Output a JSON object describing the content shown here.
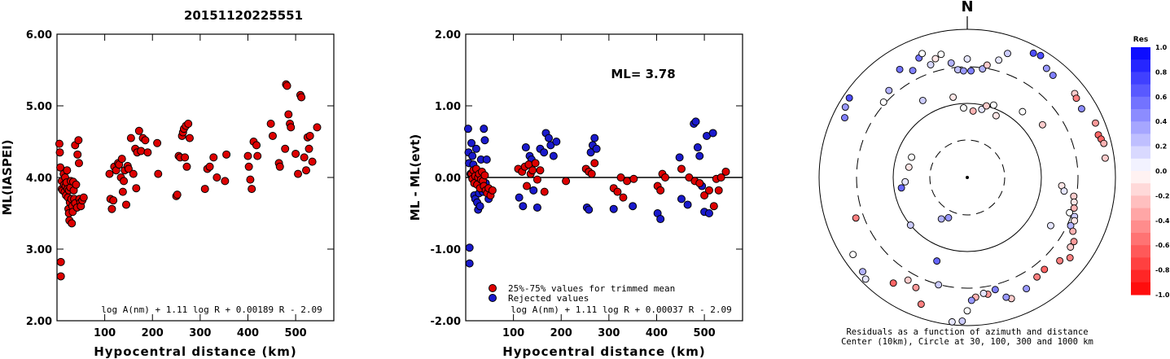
{
  "page_title": "20151120225551",
  "chart_data": [
    {
      "type": "scatter",
      "xlabel": "Hypocentral distance (km)",
      "ylabel": "ML(IASPEI)",
      "xlim": [
        0,
        580
      ],
      "ylim": [
        2.0,
        6.0
      ],
      "x_ticks": [
        "100",
        "200",
        "300",
        "400",
        "500"
      ],
      "y_ticks": [
        "2.00",
        "3.00",
        "4.00",
        "5.00",
        "6.00"
      ],
      "formula": "log A(nm) + 1.11 log R + 0.00189 R - 2.09",
      "color": "#dd0000",
      "points": [
        [
          5,
          4.47
        ],
        [
          6,
          4.35
        ],
        [
          7,
          4.14
        ],
        [
          8,
          2.82
        ],
        [
          8,
          2.62
        ],
        [
          10,
          3.95
        ],
        [
          10,
          3.84
        ],
        [
          12,
          3.82
        ],
        [
          14,
          4.05
        ],
        [
          15,
          3.9
        ],
        [
          16,
          3.8
        ],
        [
          17,
          4.0
        ],
        [
          18,
          3.88
        ],
        [
          19,
          3.75
        ],
        [
          20,
          3.93
        ],
        [
          21,
          4.1
        ],
        [
          22,
          3.84
        ],
        [
          23,
          3.72
        ],
        [
          24,
          3.56
        ],
        [
          25,
          3.5
        ],
        [
          25,
          3.82
        ],
        [
          26,
          3.4
        ],
        [
          27,
          3.65
        ],
        [
          28,
          3.86
        ],
        [
          29,
          3.95
        ],
        [
          30,
          3.7
        ],
        [
          31,
          3.36
        ],
        [
          32,
          3.6
        ],
        [
          33,
          3.52
        ],
        [
          34,
          3.94
        ],
        [
          35,
          3.82
        ],
        [
          36,
          3.7
        ],
        [
          38,
          4.45
        ],
        [
          38,
          3.64
        ],
        [
          40,
          3.9
        ],
        [
          42,
          3.58
        ],
        [
          43,
          4.32
        ],
        [
          45,
          4.52
        ],
        [
          46,
          4.2
        ],
        [
          47,
          3.7
        ],
        [
          49,
          3.65
        ],
        [
          50,
          3.6
        ],
        [
          53,
          3.68
        ],
        [
          56,
          3.72
        ],
        [
          110,
          4.05
        ],
        [
          112,
          3.7
        ],
        [
          115,
          3.56
        ],
        [
          118,
          3.68
        ],
        [
          120,
          4.15
        ],
        [
          124,
          4.1
        ],
        [
          128,
          4.2
        ],
        [
          130,
          4.18
        ],
        [
          134,
          4.0
        ],
        [
          136,
          4.26
        ],
        [
          138,
          3.8
        ],
        [
          140,
          3.95
        ],
        [
          142,
          4.1
        ],
        [
          145,
          3.62
        ],
        [
          148,
          4.16
        ],
        [
          150,
          4.12
        ],
        [
          155,
          4.55
        ],
        [
          160,
          4.05
        ],
        [
          164,
          4.4
        ],
        [
          166,
          3.85
        ],
        [
          168,
          4.35
        ],
        [
          172,
          4.65
        ],
        [
          176,
          4.37
        ],
        [
          180,
          4.55
        ],
        [
          185,
          4.52
        ],
        [
          190,
          4.35
        ],
        [
          210,
          4.48
        ],
        [
          212,
          4.05
        ],
        [
          250,
          3.74
        ],
        [
          252,
          3.76
        ],
        [
          255,
          4.3
        ],
        [
          258,
          4.28
        ],
        [
          262,
          4.58
        ],
        [
          264,
          4.63
        ],
        [
          266,
          4.68
        ],
        [
          268,
          4.28
        ],
        [
          270,
          4.72
        ],
        [
          272,
          4.15
        ],
        [
          275,
          4.75
        ],
        [
          278,
          4.55
        ],
        [
          310,
          3.84
        ],
        [
          315,
          4.12
        ],
        [
          320,
          4.15
        ],
        [
          328,
          4.28
        ],
        [
          335,
          4.0
        ],
        [
          352,
          3.95
        ],
        [
          355,
          4.32
        ],
        [
          400,
          4.3
        ],
        [
          402,
          4.15
        ],
        [
          405,
          3.97
        ],
        [
          408,
          3.84
        ],
        [
          412,
          4.5
        ],
        [
          418,
          4.45
        ],
        [
          420,
          4.3
        ],
        [
          448,
          4.75
        ],
        [
          452,
          4.58
        ],
        [
          465,
          4.2
        ],
        [
          467,
          4.15
        ],
        [
          478,
          4.4
        ],
        [
          480,
          5.3
        ],
        [
          482,
          5.28
        ],
        [
          485,
          4.88
        ],
        [
          488,
          4.75
        ],
        [
          490,
          4.7
        ],
        [
          500,
          4.33
        ],
        [
          505,
          4.05
        ],
        [
          510,
          5.15
        ],
        [
          512,
          5.12
        ],
        [
          518,
          4.28
        ],
        [
          522,
          4.1
        ],
        [
          525,
          4.56
        ],
        [
          528,
          4.4
        ],
        [
          530,
          4.58
        ],
        [
          535,
          4.22
        ],
        [
          545,
          4.7
        ]
      ]
    },
    {
      "type": "scatter",
      "xlabel": "Hypocentral distance (km)",
      "ylabel": "ML - ML(evt)",
      "xlim": [
        0,
        580
      ],
      "ylim": [
        -2.0,
        2.0
      ],
      "x_ticks": [
        "100",
        "200",
        "300",
        "400",
        "500"
      ],
      "y_ticks": [
        "-2.00",
        "-1.00",
        "0.00",
        "1.00",
        "2.00"
      ],
      "annotation": "ML= 3.78",
      "formula": "log A(nm) + 1.11 log R + 0.00037 R - 2.09",
      "legend": [
        {
          "label": "25%-75% values for trimmed mean",
          "color": "#dd0000"
        },
        {
          "label": "Rejected values",
          "color": "#1a1acc"
        }
      ],
      "trimmed_points": [
        [
          12,
          0.05
        ],
        [
          14,
          -0.02
        ],
        [
          16,
          0.1
        ],
        [
          18,
          -0.08
        ],
        [
          20,
          0.02
        ],
        [
          22,
          0.12
        ],
        [
          24,
          -0.1
        ],
        [
          26,
          0.0
        ],
        [
          28,
          0.05
        ],
        [
          30,
          -0.15
        ],
        [
          32,
          -0.03
        ],
        [
          34,
          0.08
        ],
        [
          36,
          -0.05
        ],
        [
          38,
          -0.12
        ],
        [
          40,
          0.03
        ],
        [
          42,
          -0.18
        ],
        [
          45,
          -0.22
        ],
        [
          48,
          -0.15
        ],
        [
          52,
          -0.25
        ],
        [
          56,
          -0.18
        ],
        [
          110,
          0.12
        ],
        [
          118,
          0.08
        ],
        [
          124,
          0.15
        ],
        [
          128,
          -0.12
        ],
        [
          132,
          0.18
        ],
        [
          136,
          0.05
        ],
        [
          140,
          0.1
        ],
        [
          146,
          0.2
        ],
        [
          150,
          -0.03
        ],
        [
          156,
          0.1
        ],
        [
          165,
          -0.2
        ],
        [
          210,
          -0.05
        ],
        [
          252,
          0.12
        ],
        [
          258,
          0.08
        ],
        [
          264,
          0.05
        ],
        [
          270,
          0.2
        ],
        [
          310,
          -0.15
        ],
        [
          318,
          -0.2
        ],
        [
          325,
          0.0
        ],
        [
          330,
          -0.28
        ],
        [
          338,
          -0.05
        ],
        [
          352,
          -0.02
        ],
        [
          402,
          -0.12
        ],
        [
          408,
          -0.18
        ],
        [
          412,
          0.05
        ],
        [
          418,
          0.0
        ],
        [
          452,
          0.12
        ],
        [
          468,
          0.0
        ],
        [
          480,
          -0.05
        ],
        [
          490,
          -0.08
        ],
        [
          500,
          -0.25
        ],
        [
          510,
          -0.18
        ],
        [
          520,
          -0.4
        ],
        [
          525,
          -0.02
        ],
        [
          530,
          -0.18
        ],
        [
          535,
          0.0
        ],
        [
          545,
          0.08
        ]
      ],
      "rejected_points": [
        [
          5,
          0.68
        ],
        [
          6,
          0.35
        ],
        [
          7,
          0.2
        ],
        [
          8,
          -0.98
        ],
        [
          8,
          -1.2
        ],
        [
          10,
          0.05
        ],
        [
          12,
          0.48
        ],
        [
          14,
          0.3
        ],
        [
          16,
          0.18
        ],
        [
          18,
          -0.25
        ],
        [
          20,
          -0.3
        ],
        [
          22,
          0.4
        ],
        [
          24,
          -0.35
        ],
        [
          26,
          -0.45
        ],
        [
          28,
          -0.22
        ],
        [
          30,
          -0.4
        ],
        [
          32,
          0.25
        ],
        [
          34,
          -0.1
        ],
        [
          36,
          -0.2
        ],
        [
          38,
          0.68
        ],
        [
          40,
          0.52
        ],
        [
          42,
          -0.08
        ],
        [
          44,
          0.25
        ],
        [
          46,
          -0.18
        ],
        [
          48,
          -0.3
        ],
        [
          112,
          -0.28
        ],
        [
          120,
          -0.4
        ],
        [
          126,
          0.42
        ],
        [
          134,
          0.3
        ],
        [
          138,
          0.25
        ],
        [
          142,
          -0.18
        ],
        [
          150,
          -0.42
        ],
        [
          156,
          0.4
        ],
        [
          164,
          0.35
        ],
        [
          168,
          0.62
        ],
        [
          174,
          0.55
        ],
        [
          178,
          0.45
        ],
        [
          184,
          0.3
        ],
        [
          190,
          0.5
        ],
        [
          254,
          -0.42
        ],
        [
          258,
          -0.45
        ],
        [
          262,
          0.35
        ],
        [
          266,
          0.45
        ],
        [
          270,
          0.55
        ],
        [
          274,
          0.4
        ],
        [
          310,
          -0.44
        ],
        [
          350,
          -0.4
        ],
        [
          402,
          -0.5
        ],
        [
          408,
          -0.58
        ],
        [
          448,
          0.28
        ],
        [
          452,
          -0.3
        ],
        [
          465,
          -0.38
        ],
        [
          478,
          0.75
        ],
        [
          482,
          0.78
        ],
        [
          486,
          0.42
        ],
        [
          490,
          0.3
        ],
        [
          495,
          -0.12
        ],
        [
          500,
          -0.48
        ],
        [
          505,
          0.58
        ],
        [
          510,
          -0.5
        ],
        [
          518,
          0.62
        ]
      ]
    },
    {
      "type": "polar scatter",
      "north_label": "N",
      "caption_line1": "Residuals as a function of azimuth and distance",
      "caption_line2": "Center (10km), Circle at 30, 100, 300 and 1000 km",
      "colorbar_title": "Res",
      "colorbar_ticks": [
        "1.0",
        "0.8",
        "0.6",
        "0.4",
        "0.2",
        "0.0",
        "-0.2",
        "-0.4",
        "-0.6",
        "-0.8",
        "-1.0"
      ],
      "points": [
        [
          -32,
          0.86,
          0.55
        ],
        [
          -22,
          0.87,
          0.55
        ],
        [
          -15,
          0.83,
          -0.1
        ],
        [
          -8,
          0.78,
          0.3
        ],
        [
          -5,
          0.73,
          0.25
        ],
        [
          -2,
          0.72,
          0.4
        ],
        [
          2,
          0.72,
          0.5
        ],
        [
          8,
          0.74,
          0.3
        ],
        [
          10,
          0.77,
          -0.2
        ],
        [
          15,
          0.82,
          0.1
        ],
        [
          18,
          0.88,
          0.2
        ],
        [
          28,
          0.95,
          0.7
        ],
        [
          31,
          0.96,
          0.7
        ],
        [
          36,
          0.91,
          0.4
        ],
        [
          40,
          0.9,
          0.5
        ],
        [
          52,
          0.92,
          -0.2
        ],
        [
          54,
          0.91,
          -0.5
        ],
        [
          59,
          0.9,
          0.45
        ],
        [
          67,
          0.94,
          -0.4
        ],
        [
          72,
          0.93,
          -0.6
        ],
        [
          74,
          0.94,
          -0.6
        ],
        [
          76,
          0.95,
          -0.3
        ],
        [
          82,
          0.94,
          -0.2
        ],
        [
          95,
          0.64,
          -0.1
        ],
        [
          98,
          0.66,
          0.1
        ],
        [
          100,
          0.73,
          -0.2
        ],
        [
          103,
          0.74,
          -0.1
        ],
        [
          106,
          0.75,
          -0.3
        ],
        [
          109,
          0.73,
          0.0
        ],
        [
          110,
          0.77,
          0.2
        ],
        [
          112,
          0.78,
          -0.1
        ],
        [
          115,
          0.77,
          0.3
        ],
        [
          117,
          0.8,
          -0.3
        ],
        [
          121,
          0.84,
          -0.4
        ],
        [
          124,
          0.84,
          -0.2
        ],
        [
          128,
          0.88,
          -0.5
        ],
        [
          132,
          0.84,
          -0.5
        ],
        [
          140,
          0.81,
          -0.6
        ],
        [
          145,
          0.82,
          -0.5
        ],
        [
          152,
          0.85,
          0.4
        ],
        [
          160,
          0.87,
          -0.2
        ],
        [
          162,
          0.85,
          0.4
        ],
        [
          166,
          0.78,
          0.5
        ],
        [
          170,
          0.8,
          -0.4
        ],
        [
          172,
          0.79,
          0.1
        ],
        [
          176,
          0.81,
          -0.3
        ],
        [
          178,
          0.83,
          0.4
        ],
        [
          180,
          0.9,
          0.0
        ],
        [
          182,
          0.97,
          0.2
        ],
        [
          186,
          0.98,
          0.1
        ],
        [
          200,
          0.91,
          -0.5
        ],
        [
          205,
          0.82,
          -0.4
        ],
        [
          210,
          0.8,
          -0.2
        ],
        [
          215,
          0.87,
          -0.6
        ],
        [
          225,
          0.97,
          0.1
        ],
        [
          228,
          0.95,
          0.3
        ],
        [
          236,
          0.93,
          0.0
        ],
        [
          250,
          0.8,
          -0.5
        ],
        [
          261,
          0.45,
          0.6
        ],
        [
          266,
          0.42,
          0.1
        ],
        [
          280,
          0.4,
          -0.1
        ],
        [
          290,
          0.4,
          0.0
        ],
        [
          296,
          0.92,
          0.5
        ],
        [
          300,
          0.95,
          0.4
        ],
        [
          304,
          0.96,
          0.7
        ],
        [
          312,
          0.76,
          0.0
        ],
        [
          318,
          0.79,
          0.3
        ],
        [
          333,
          0.81,
          0.5
        ],
        [
          340,
          0.89,
          0.0
        ],
        [
          357,
          0.47,
          0.0
        ],
        [
          5,
          0.45,
          -0.3
        ],
        [
          12,
          0.47,
          0.1
        ],
        [
          15,
          0.5,
          -0.2
        ],
        [
          20,
          0.52,
          0.0
        ],
        [
          25,
          0.46,
          -0.1
        ],
        [
          195,
          0.75,
          0.2
        ],
        [
          200,
          0.6,
          0.6
        ],
        [
          205,
          0.3,
          0.4
        ],
        [
          212,
          0.33,
          0.3
        ],
        [
          230,
          0.5,
          0.2
        ],
        [
          0,
          0.8,
          0.1
        ],
        [
          -12,
          0.85,
          0.0
        ],
        [
          -18,
          0.8,
          0.15
        ],
        [
          330,
          0.6,
          0.2
        ],
        [
          350,
          0.55,
          -0.1
        ],
        [
          40,
          0.58,
          0.0
        ],
        [
          55,
          0.62,
          -0.2
        ],
        [
          120,
          0.65,
          0.1
        ]
      ]
    }
  ]
}
